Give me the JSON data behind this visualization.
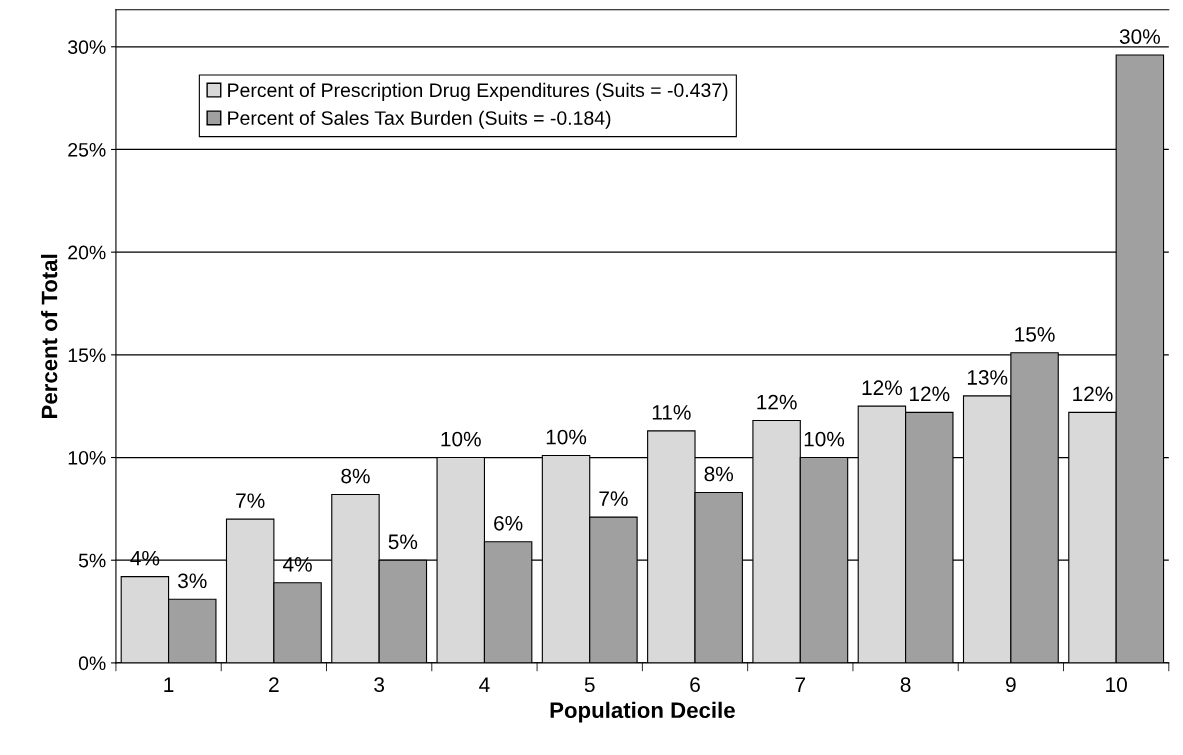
{
  "chart_data": {
    "type": "bar",
    "xlabel": "Population Decile",
    "ylabel": "Percent of Total",
    "categories": [
      "1",
      "2",
      "3",
      "4",
      "5",
      "6",
      "7",
      "8",
      "9",
      "10"
    ],
    "series": [
      {
        "name": "Percent of Prescription Drug Expenditures (Suits = -0.437)",
        "color": "#d9d9d9",
        "values": [
          4.2,
          7.0,
          8.2,
          10.0,
          10.1,
          11.3,
          11.8,
          12.5,
          13.0,
          12.2
        ],
        "value_labels": [
          "4%",
          "7%",
          "8%",
          "10%",
          "10%",
          "11%",
          "12%",
          "12%",
          "13%",
          "12%"
        ]
      },
      {
        "name": "Percent of Sales Tax Burden (Suits = -0.184)",
        "color": "#a0a0a0",
        "values": [
          3.1,
          3.9,
          5.0,
          5.9,
          7.1,
          8.3,
          10.0,
          12.2,
          15.1,
          29.6
        ],
        "value_labels": [
          "3%",
          "4%",
          "5%",
          "6%",
          "7%",
          "8%",
          "10%",
          "12%",
          "15%",
          "30%"
        ]
      }
    ],
    "ylim": [
      0,
      31.8
    ],
    "yticks": [
      {
        "value": 0,
        "label": "0%"
      },
      {
        "value": 5,
        "label": "5%"
      },
      {
        "value": 10,
        "label": "10%"
      },
      {
        "value": 15,
        "label": "15%"
      },
      {
        "value": 20,
        "label": "20%"
      },
      {
        "value": 25,
        "label": "25%"
      },
      {
        "value": 30,
        "label": "30%"
      }
    ],
    "grid": "y",
    "legend": "top left"
  }
}
